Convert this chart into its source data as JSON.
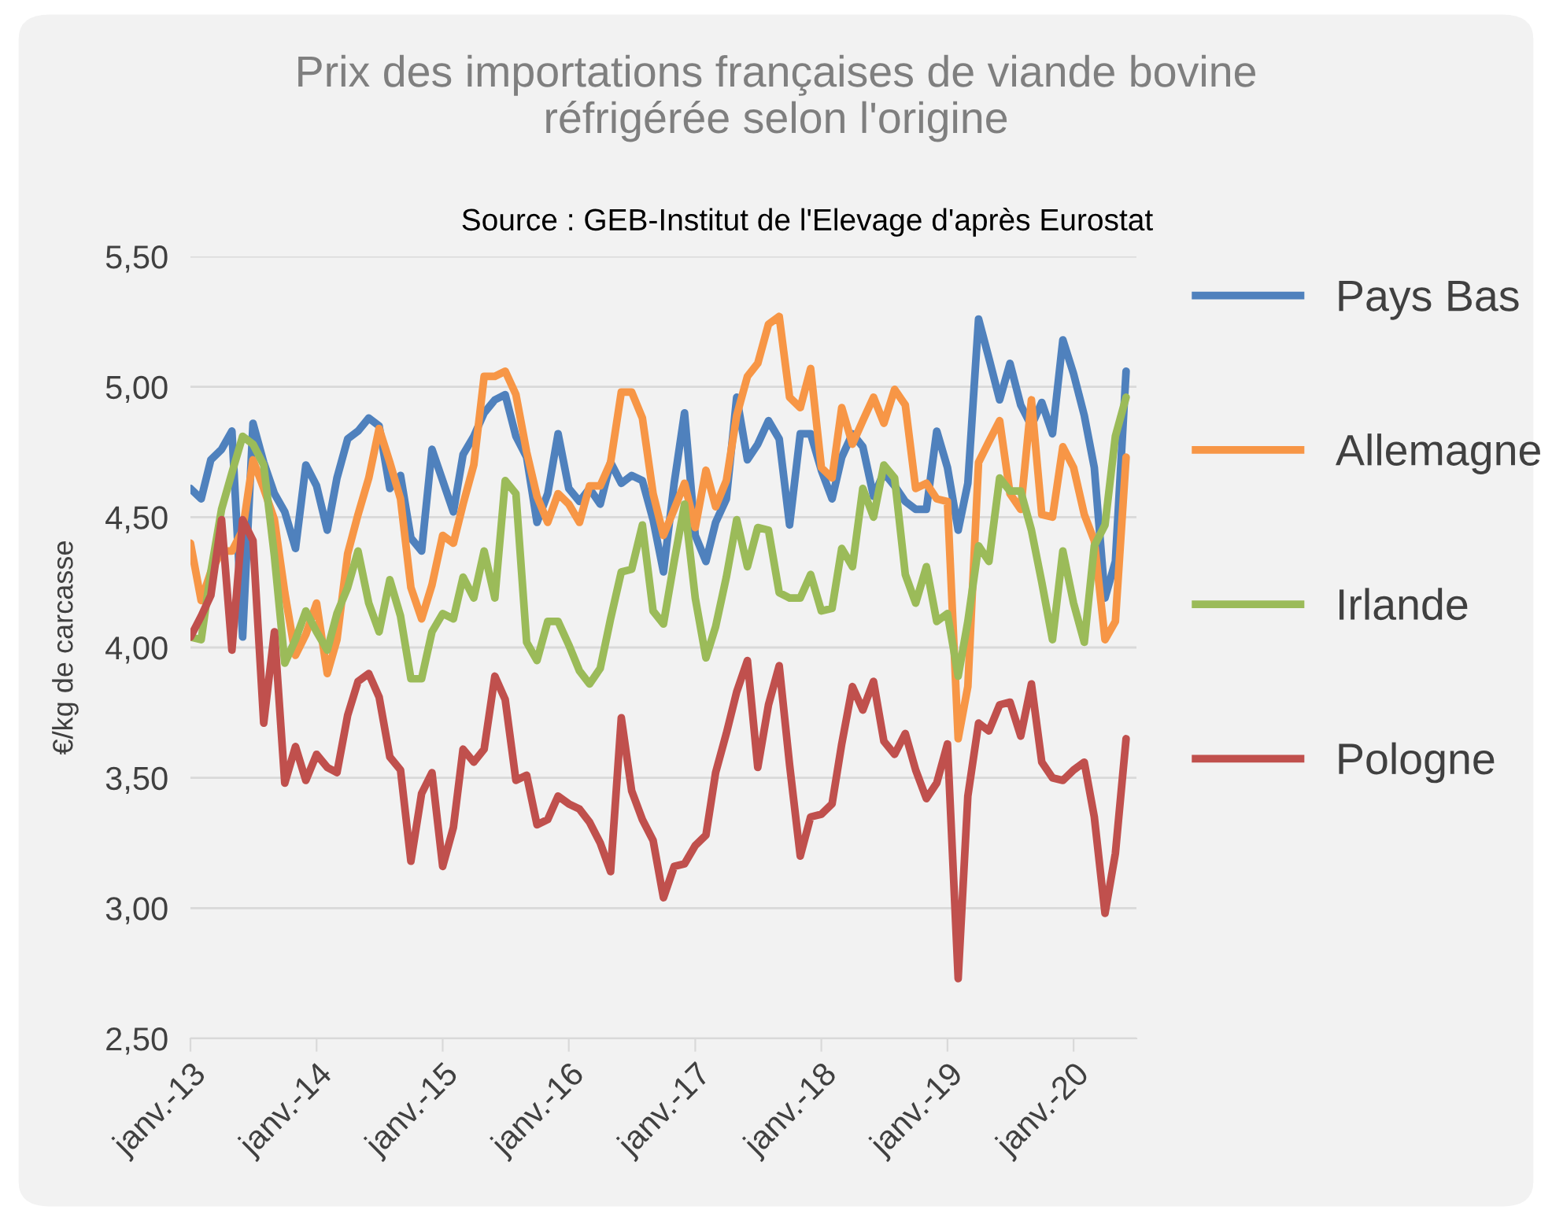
{
  "chart_data": {
    "type": "line",
    "title": "Prix des importations françaises de viande bovine\nréfrigérée selon l'origine",
    "annotations": [
      "Source : GEB-Institut de l'Elevage d'après Eurostat"
    ],
    "ylabel": "€/kg de carcasse",
    "x": [
      "2013-01",
      "2013-02",
      "2013-03",
      "2013-04",
      "2013-05",
      "2013-06",
      "2013-07",
      "2013-08",
      "2013-09",
      "2013-10",
      "2013-11",
      "2013-12",
      "2014-01",
      "2014-02",
      "2014-03",
      "2014-04",
      "2014-05",
      "2014-06",
      "2014-07",
      "2014-08",
      "2014-09",
      "2014-10",
      "2014-11",
      "2014-12",
      "2015-01",
      "2015-02",
      "2015-03",
      "2015-04",
      "2015-05",
      "2015-06",
      "2015-07",
      "2015-08",
      "2015-09",
      "2015-10",
      "2015-11",
      "2015-12",
      "2016-01",
      "2016-02",
      "2016-03",
      "2016-04",
      "2016-05",
      "2016-06",
      "2016-07",
      "2016-08",
      "2016-09",
      "2016-10",
      "2016-11",
      "2016-12",
      "2017-01",
      "2017-02",
      "2017-03",
      "2017-04",
      "2017-05",
      "2017-06",
      "2017-07",
      "2017-08",
      "2017-09",
      "2017-10",
      "2017-11",
      "2017-12",
      "2018-01",
      "2018-02",
      "2018-03",
      "2018-04",
      "2018-05",
      "2018-06",
      "2018-07",
      "2018-08",
      "2018-09",
      "2018-10",
      "2018-11",
      "2018-12",
      "2019-01",
      "2019-02",
      "2019-03",
      "2019-04",
      "2019-05",
      "2019-06",
      "2019-07",
      "2019-08",
      "2019-09",
      "2019-10",
      "2019-11",
      "2019-12",
      "2020-01",
      "2020-02",
      "2020-03",
      "2020-04",
      "2020-05",
      "2020-06"
    ],
    "series": [
      {
        "name": "Pays Bas",
        "color": "#4f81bd",
        "values": [
          4.61,
          4.57,
          4.72,
          4.76,
          4.83,
          4.04,
          4.86,
          4.71,
          4.59,
          4.52,
          4.38,
          4.7,
          4.62,
          4.45,
          4.65,
          4.8,
          4.83,
          4.88,
          4.85,
          4.61,
          4.66,
          4.42,
          4.37,
          4.76,
          4.64,
          4.52,
          4.74,
          4.81,
          4.9,
          4.95,
          4.97,
          4.81,
          4.73,
          4.48,
          4.59,
          4.82,
          4.61,
          4.56,
          4.61,
          4.55,
          4.71,
          4.63,
          4.66,
          4.64,
          4.49,
          4.29,
          4.63,
          4.9,
          4.43,
          4.33,
          4.48,
          4.57,
          4.96,
          4.72,
          4.78,
          4.87,
          4.8,
          4.47,
          4.82,
          4.82,
          4.68,
          4.57,
          4.73,
          4.82,
          4.77,
          4.58,
          4.67,
          4.62,
          4.56,
          4.53,
          4.53,
          4.83,
          4.69,
          4.45,
          4.63,
          5.26,
          5.11,
          4.95,
          5.09,
          4.93,
          4.85,
          4.94,
          4.82,
          5.18,
          5.05,
          4.89,
          4.69,
          4.19,
          4.33,
          5.06
        ]
      },
      {
        "name": "Allemagne",
        "color": "#f79646",
        "values": [
          4.4,
          4.18,
          4.29,
          4.37,
          4.37,
          4.45,
          4.72,
          4.61,
          4.49,
          4.21,
          3.97,
          4.05,
          4.17,
          3.9,
          4.03,
          4.36,
          4.51,
          4.65,
          4.84,
          4.71,
          4.57,
          4.23,
          4.11,
          4.24,
          4.43,
          4.4,
          4.55,
          4.7,
          5.04,
          5.04,
          5.06,
          4.97,
          4.75,
          4.58,
          4.48,
          4.59,
          4.55,
          4.48,
          4.62,
          4.62,
          4.71,
          4.98,
          4.98,
          4.88,
          4.59,
          4.43,
          4.53,
          4.63,
          4.46,
          4.68,
          4.54,
          4.64,
          4.89,
          5.04,
          5.09,
          5.24,
          5.27,
          4.96,
          4.92,
          5.07,
          4.69,
          4.65,
          4.92,
          4.78,
          4.87,
          4.96,
          4.86,
          4.99,
          4.93,
          4.61,
          4.63,
          4.57,
          4.56,
          3.65,
          3.85,
          4.71,
          4.79,
          4.87,
          4.59,
          4.53,
          4.95,
          4.51,
          4.5,
          4.77,
          4.69,
          4.51,
          4.41,
          4.03,
          4.1,
          4.73
        ]
      },
      {
        "name": "Irlande",
        "color": "#9bbb59",
        "values": [
          4.04,
          4.03,
          4.29,
          4.53,
          4.67,
          4.81,
          4.78,
          4.7,
          4.35,
          3.94,
          4.03,
          4.14,
          4.06,
          3.99,
          4.13,
          4.23,
          4.37,
          4.17,
          4.06,
          4.26,
          4.12,
          3.88,
          3.88,
          4.06,
          4.13,
          4.11,
          4.27,
          4.19,
          4.37,
          4.19,
          4.64,
          4.59,
          4.02,
          3.95,
          4.1,
          4.1,
          4.01,
          3.91,
          3.86,
          3.92,
          4.11,
          4.29,
          4.3,
          4.47,
          4.14,
          4.09,
          4.33,
          4.55,
          4.19,
          3.96,
          4.08,
          4.27,
          4.49,
          4.31,
          4.46,
          4.45,
          4.21,
          4.19,
          4.19,
          4.28,
          4.14,
          4.15,
          4.38,
          4.31,
          4.61,
          4.5,
          4.7,
          4.65,
          4.28,
          4.17,
          4.31,
          4.1,
          4.13,
          3.89,
          4.1,
          4.39,
          4.33,
          4.65,
          4.6,
          4.6,
          4.45,
          4.25,
          4.03,
          4.37,
          4.17,
          4.02,
          4.39,
          4.47,
          4.81,
          4.96
        ]
      },
      {
        "name": "Pologne",
        "color": "#c0504d",
        "values": [
          4.04,
          4.12,
          4.2,
          4.49,
          3.99,
          4.49,
          4.41,
          3.71,
          4.06,
          3.48,
          3.62,
          3.49,
          3.59,
          3.54,
          3.52,
          3.74,
          3.87,
          3.9,
          3.81,
          3.58,
          3.53,
          3.18,
          3.44,
          3.52,
          3.16,
          3.31,
          3.61,
          3.56,
          3.61,
          3.89,
          3.8,
          3.49,
          3.51,
          3.32,
          3.34,
          3.43,
          3.4,
          3.38,
          3.33,
          3.25,
          3.14,
          3.73,
          3.45,
          3.34,
          3.26,
          3.04,
          3.16,
          3.17,
          3.24,
          3.28,
          3.52,
          3.67,
          3.83,
          3.95,
          3.54,
          3.78,
          3.93,
          3.55,
          3.2,
          3.35,
          3.36,
          3.4,
          3.63,
          3.85,
          3.76,
          3.87,
          3.64,
          3.59,
          3.67,
          3.53,
          3.42,
          3.48,
          3.63,
          2.73,
          3.43,
          3.71,
          3.68,
          3.78,
          3.79,
          3.66,
          3.86,
          3.56,
          3.5,
          3.49,
          3.53,
          3.56,
          3.35,
          2.98,
          3.21,
          3.65
        ]
      }
    ],
    "xlim": [
      "2013-01",
      "2020-07"
    ],
    "xticks": [
      {
        "value": "2013-01",
        "label": "janv.-13"
      },
      {
        "value": "2014-01",
        "label": "janv.-14"
      },
      {
        "value": "2015-01",
        "label": "janv.-15"
      },
      {
        "value": "2016-01",
        "label": "janv.-16"
      },
      {
        "value": "2017-01",
        "label": "janv.-17"
      },
      {
        "value": "2018-01",
        "label": "janv.-18"
      },
      {
        "value": "2019-01",
        "label": "janv.-19"
      },
      {
        "value": "2020-01",
        "label": "janv.-20"
      }
    ],
    "ylim": [
      2.5,
      5.5
    ],
    "yticks": [
      {
        "value": 2.5,
        "label": "2,50"
      },
      {
        "value": 3.0,
        "label": "3,00"
      },
      {
        "value": 3.5,
        "label": "3,50"
      },
      {
        "value": 4.0,
        "label": "4,00"
      },
      {
        "value": 4.5,
        "label": "4,50"
      },
      {
        "value": 5.0,
        "label": "5,00"
      },
      {
        "value": 5.5,
        "label": "5,50"
      }
    ],
    "grid": "y",
    "legend": "right",
    "marker": "none",
    "line_style": "solid"
  }
}
